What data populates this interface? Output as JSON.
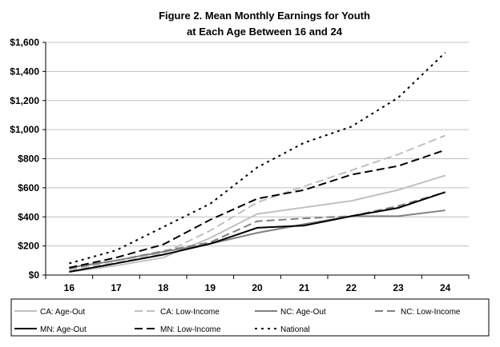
{
  "chart_data": {
    "type": "line",
    "title": [
      "Figure 2. Mean Monthly Earnings for Youth",
      "at Each Age Between 16 and 24"
    ],
    "xlabel": "",
    "ylabel": "",
    "categories": [
      "16",
      "17",
      "18",
      "19",
      "20",
      "21",
      "22",
      "23",
      "24"
    ],
    "ylim": [
      0,
      1600
    ],
    "yticks": [
      0,
      200,
      400,
      600,
      800,
      1000,
      1200,
      1400,
      1600
    ],
    "ytick_labels": [
      "$0",
      "$200",
      "$400",
      "$600",
      "$800",
      "$1,000",
      "$1,200",
      "$1,400",
      "$1,600"
    ],
    "grid": true,
    "legend_position": "bottom",
    "series": [
      {
        "name": "CA: Age-Out",
        "color": "#c0c0c0",
        "style": "solid",
        "values": [
          22,
          65,
          120,
          255,
          420,
          465,
          510,
          585,
          685
        ]
      },
      {
        "name": "CA: Low-Income",
        "color": "#c0c0c0",
        "style": "dash",
        "values": [
          35,
          85,
          150,
          305,
          500,
          610,
          720,
          830,
          960
        ]
      },
      {
        "name": "NC: Age-Out",
        "color": "#808080",
        "style": "solid",
        "values": [
          50,
          100,
          160,
          215,
          290,
          350,
          405,
          405,
          445
        ]
      },
      {
        "name": "NC: Low-Income",
        "color": "#808080",
        "style": "dash",
        "values": [
          45,
          100,
          165,
          225,
          370,
          390,
          405,
          475,
          570
        ]
      },
      {
        "name": "MN: Age-Out",
        "color": "#000000",
        "style": "solid",
        "values": [
          22,
          80,
          140,
          215,
          325,
          340,
          405,
          462,
          570
        ]
      },
      {
        "name": "MN: Low-Income",
        "color": "#000000",
        "style": "dash",
        "values": [
          50,
          120,
          210,
          380,
          525,
          585,
          690,
          750,
          860
        ]
      },
      {
        "name": "National",
        "color": "#000000",
        "style": "dot",
        "values": [
          80,
          170,
          330,
          490,
          740,
          910,
          1020,
          1220,
          1530
        ]
      }
    ]
  }
}
